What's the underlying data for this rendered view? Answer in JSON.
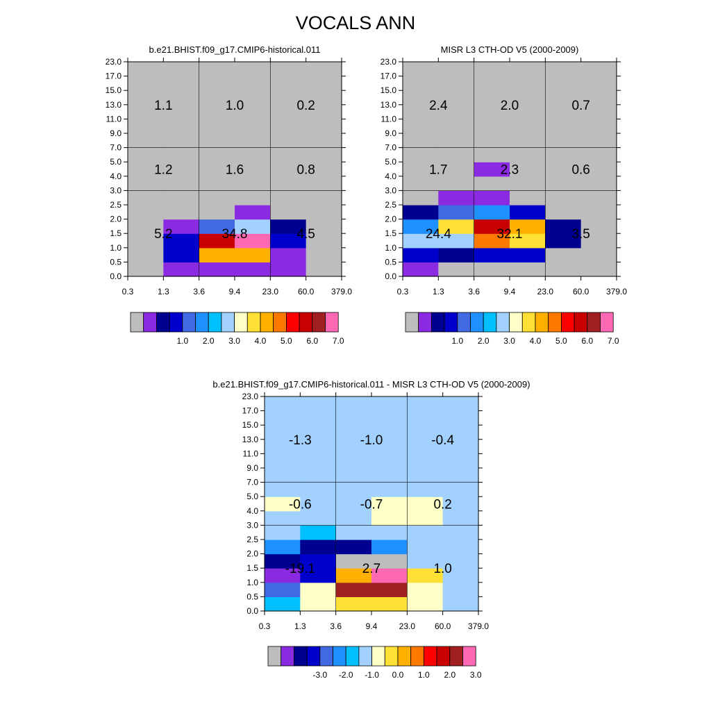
{
  "figure": {
    "title": "VOCALS ANN"
  },
  "palette": [
    "#bdbdbd",
    "#8a2be2",
    "#000090",
    "#0000cd",
    "#4169e1",
    "#1e90ff",
    "#00bfff",
    "#a2d1ff",
    "#ffffc8",
    "#ffe135",
    "#ffb000",
    "#ff7800",
    "#ff0000",
    "#c80000",
    "#a02020",
    "#ff69b4"
  ],
  "chart_data": [
    {
      "type": "heatmap",
      "title": "b.e21.BHIST.f09_g17.CMIP6-historical.011",
      "x_ticks": [
        "0.3",
        "1.3",
        "3.6",
        "9.4",
        "23.0",
        "60.0",
        "379.0"
      ],
      "y_ticks": [
        "0.0",
        "0.5",
        "1.0",
        "1.5",
        "2.0",
        "2.5",
        "3.0",
        "4.0",
        "5.0",
        "7.0",
        "9.0",
        "11.0",
        "13.0",
        "15.0",
        "17.0",
        "23.0"
      ],
      "cells": [
        [
          0,
          1,
          1,
          1,
          1,
          0
        ],
        [
          0,
          3,
          10,
          10,
          1,
          0
        ],
        [
          0,
          3,
          13,
          15,
          3,
          0
        ],
        [
          0,
          1,
          4,
          7,
          2,
          0
        ],
        [
          0,
          0,
          0,
          1,
          0,
          0
        ],
        [
          0,
          0,
          0,
          0,
          0,
          0
        ],
        [
          0,
          0,
          0,
          0,
          0,
          0
        ],
        [
          0,
          0,
          0,
          0,
          0,
          0
        ],
        [
          0,
          0,
          0,
          0,
          0,
          0
        ],
        [
          0,
          0,
          0,
          0,
          0,
          0
        ],
        [
          0,
          0,
          0,
          0,
          0,
          0
        ],
        [
          0,
          0,
          0,
          0,
          0,
          0
        ],
        [
          0,
          0,
          0,
          0,
          0,
          0
        ],
        [
          0,
          0,
          0,
          0,
          0,
          0
        ],
        [
          0,
          0,
          0,
          0,
          0,
          0
        ]
      ],
      "region_sums": [
        {
          "label": "5.2",
          "row": 0,
          "col": 0
        },
        {
          "label": "34.8",
          "row": 0,
          "col": 1
        },
        {
          "label": "4.5",
          "row": 0,
          "col": 2
        },
        {
          "label": "1.2",
          "row": 1,
          "col": 0
        },
        {
          "label": "1.6",
          "row": 1,
          "col": 1
        },
        {
          "label": "0.8",
          "row": 1,
          "col": 2
        },
        {
          "label": "1.1",
          "row": 2,
          "col": 0
        },
        {
          "label": "1.0",
          "row": 2,
          "col": 1
        },
        {
          "label": "0.2",
          "row": 2,
          "col": 2
        }
      ],
      "colorbar": {
        "labels": [
          "1.0",
          "2.0",
          "3.0",
          "4.0",
          "5.0",
          "6.0",
          "7.0"
        ]
      }
    },
    {
      "type": "heatmap",
      "title": "MISR L3 CTH-OD V5 (2000-2009)",
      "x_ticks": [
        "0.3",
        "1.3",
        "3.6",
        "9.4",
        "23.0",
        "60.0",
        "379.0"
      ],
      "y_ticks": [
        "0.0",
        "0.5",
        "1.0",
        "1.5",
        "2.0",
        "2.5",
        "3.0",
        "4.0",
        "5.0",
        "7.0",
        "9.0",
        "11.0",
        "13.0",
        "15.0",
        "17.0",
        "23.0"
      ],
      "cells": [
        [
          1,
          0,
          0,
          0,
          0,
          0
        ],
        [
          3,
          2,
          3,
          3,
          0,
          0
        ],
        [
          7,
          7,
          11,
          9,
          2,
          0
        ],
        [
          5,
          9,
          13,
          10,
          2,
          0
        ],
        [
          2,
          4,
          5,
          3,
          0,
          0
        ],
        [
          0,
          1,
          1,
          0,
          0,
          0
        ],
        [
          0,
          0,
          0,
          0,
          0,
          0
        ],
        [
          0,
          0,
          1,
          0,
          0,
          0
        ],
        [
          0,
          0,
          0,
          0,
          0,
          0
        ],
        [
          0,
          0,
          0,
          0,
          0,
          0
        ],
        [
          0,
          0,
          0,
          0,
          0,
          0
        ],
        [
          0,
          0,
          0,
          0,
          0,
          0
        ],
        [
          0,
          0,
          0,
          0,
          0,
          0
        ],
        [
          0,
          0,
          0,
          0,
          0,
          0
        ],
        [
          0,
          0,
          0,
          0,
          0,
          0
        ]
      ],
      "region_sums": [
        {
          "label": "24.4",
          "row": 0,
          "col": 0
        },
        {
          "label": "32.1",
          "row": 0,
          "col": 1
        },
        {
          "label": "3.5",
          "row": 0,
          "col": 2
        },
        {
          "label": "1.7",
          "row": 1,
          "col": 0
        },
        {
          "label": "2.3",
          "row": 1,
          "col": 1
        },
        {
          "label": "0.6",
          "row": 1,
          "col": 2
        },
        {
          "label": "2.4",
          "row": 2,
          "col": 0
        },
        {
          "label": "2.0",
          "row": 2,
          "col": 1
        },
        {
          "label": "0.7",
          "row": 2,
          "col": 2
        }
      ],
      "colorbar": {
        "labels": [
          "1.0",
          "2.0",
          "3.0",
          "4.0",
          "5.0",
          "6.0",
          "7.0"
        ]
      }
    },
    {
      "type": "heatmap",
      "title": "b.e21.BHIST.f09_g17.CMIP6-historical.011 - MISR L3 CTH-OD V5 (2000-2009)",
      "x_ticks": [
        "0.3",
        "1.3",
        "3.6",
        "9.4",
        "23.0",
        "60.0",
        "379.0"
      ],
      "y_ticks": [
        "0.0",
        "0.5",
        "1.0",
        "1.5",
        "2.0",
        "2.5",
        "3.0",
        "4.0",
        "5.0",
        "7.0",
        "9.0",
        "11.0",
        "13.0",
        "15.0",
        "17.0",
        "23.0"
      ],
      "cells": [
        [
          6,
          8,
          9,
          9,
          8,
          7
        ],
        [
          4,
          8,
          14,
          14,
          8,
          7
        ],
        [
          1,
          3,
          10,
          15,
          9,
          7
        ],
        [
          2,
          3,
          0,
          0,
          7,
          7
        ],
        [
          5,
          2,
          2,
          5,
          7,
          7
        ],
        [
          7,
          6,
          7,
          7,
          7,
          7
        ],
        [
          7,
          7,
          7,
          8,
          8,
          7
        ],
        [
          8,
          7,
          7,
          8,
          8,
          7
        ],
        [
          7,
          7,
          7,
          7,
          7,
          7
        ],
        [
          7,
          7,
          7,
          7,
          7,
          7
        ],
        [
          7,
          7,
          7,
          7,
          7,
          7
        ],
        [
          7,
          7,
          7,
          7,
          7,
          7
        ],
        [
          7,
          7,
          7,
          7,
          7,
          7
        ],
        [
          7,
          7,
          7,
          7,
          7,
          7
        ],
        [
          7,
          7,
          7,
          7,
          7,
          7
        ]
      ],
      "region_sums": [
        {
          "label": "-19.1",
          "row": 0,
          "col": 0
        },
        {
          "label": "2.7",
          "row": 0,
          "col": 1
        },
        {
          "label": "1.0",
          "row": 0,
          "col": 2
        },
        {
          "label": "-0.6",
          "row": 1,
          "col": 0
        },
        {
          "label": "-0.7",
          "row": 1,
          "col": 1
        },
        {
          "label": "0.2",
          "row": 1,
          "col": 2
        },
        {
          "label": "-1.3",
          "row": 2,
          "col": 0
        },
        {
          "label": "-1.0",
          "row": 2,
          "col": 1
        },
        {
          "label": "-0.4",
          "row": 2,
          "col": 2
        }
      ],
      "colorbar": {
        "labels": [
          "-3.0",
          "-2.0",
          "-1.0",
          "0.0",
          "1.0",
          "2.0",
          "3.0"
        ]
      }
    }
  ]
}
